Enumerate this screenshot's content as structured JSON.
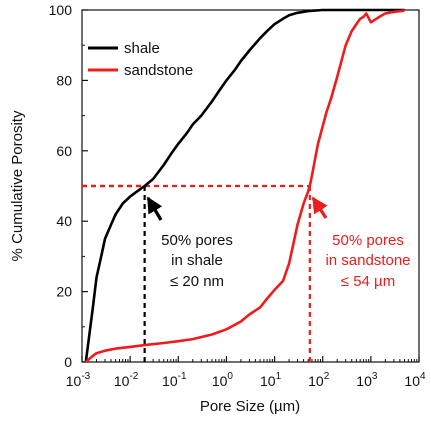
{
  "chart_data": {
    "type": "line",
    "xscale": "log",
    "xlabel": "Pore Size (µm)",
    "ylabel": "% Cumulative Porosity",
    "xlim": [
      0.001,
      10000
    ],
    "ylim": [
      0,
      100
    ],
    "x_ticks": [
      {
        "value": 0.001,
        "base": "10",
        "exp": "-3"
      },
      {
        "value": 0.01,
        "base": "10",
        "exp": "-2"
      },
      {
        "value": 0.1,
        "base": "10",
        "exp": "-1"
      },
      {
        "value": 1,
        "base": "10",
        "exp": "0"
      },
      {
        "value": 10,
        "base": "10",
        "exp": "1"
      },
      {
        "value": 100,
        "base": "10",
        "exp": "2"
      },
      {
        "value": 1000,
        "base": "10",
        "exp": "3"
      },
      {
        "value": 10000,
        "base": "10",
        "exp": "4"
      }
    ],
    "y_ticks": [
      {
        "value": 0,
        "label": "0"
      },
      {
        "value": 20,
        "label": "20"
      },
      {
        "value": 40,
        "label": "40"
      },
      {
        "value": 60,
        "label": "60"
      },
      {
        "value": 80,
        "label": "80"
      },
      {
        "value": 100,
        "label": "100"
      }
    ],
    "legend_position": "top-left",
    "grid": false,
    "series": [
      {
        "name": "shale",
        "color": "#000000",
        "x": [
          0.0012,
          0.0014,
          0.0017,
          0.002,
          0.0025,
          0.003,
          0.004,
          0.005,
          0.007,
          0.01,
          0.014,
          0.02,
          0.03,
          0.05,
          0.07,
          0.1,
          0.15,
          0.2,
          0.3,
          0.5,
          0.7,
          1,
          1.5,
          2,
          3,
          5,
          7,
          10,
          15,
          20,
          30,
          50,
          100,
          200,
          500,
          1000,
          5000
        ],
        "y": [
          0,
          7,
          16,
          24,
          30,
          35,
          39,
          42,
          45,
          47,
          48.5,
          50,
          52,
          56,
          59,
          62,
          65,
          67.5,
          70,
          74,
          77,
          80,
          83,
          85.5,
          88.5,
          92,
          94,
          96,
          97.5,
          98.5,
          99.2,
          99.7,
          100,
          100,
          100,
          100,
          100
        ]
      },
      {
        "name": "sandstone",
        "color": "#ee1c1c",
        "x": [
          0.0012,
          0.0016,
          0.002,
          0.003,
          0.005,
          0.01,
          0.02,
          0.05,
          0.1,
          0.2,
          0.5,
          1,
          2,
          3,
          5,
          7,
          10,
          15,
          20,
          25,
          30,
          40,
          50,
          54,
          60,
          70,
          80,
          100,
          120,
          150,
          200,
          250,
          300,
          400,
          500,
          600,
          700,
          800,
          1000,
          1300,
          1600,
          2000,
          3000,
          5000
        ],
        "y": [
          0,
          1.5,
          2.5,
          3.2,
          3.8,
          4.3,
          4.8,
          5.4,
          5.9,
          6.5,
          7.8,
          9.3,
          11.5,
          13.5,
          15.5,
          18,
          20.5,
          23,
          28,
          34,
          39,
          45,
          48.5,
          50,
          53,
          58,
          62,
          67,
          71,
          75,
          81,
          86,
          90,
          94,
          96,
          97.5,
          98,
          99,
          96.5,
          97.5,
          98.3,
          99,
          99.5,
          99.8
        ]
      }
    ],
    "reference_lines": [
      {
        "series": "shale",
        "x": 0.02,
        "y": 50
      },
      {
        "series": "sandstone",
        "x": 54,
        "y": 50
      }
    ],
    "annotations": [
      {
        "lines": [
          "50% pores",
          "in shale",
          "≤ 20 nm"
        ],
        "color": "#111111"
      },
      {
        "lines": [
          "50% pores",
          "in sandstone",
          "≤ 54 µm"
        ],
        "color": "#ee1c1c"
      }
    ]
  }
}
